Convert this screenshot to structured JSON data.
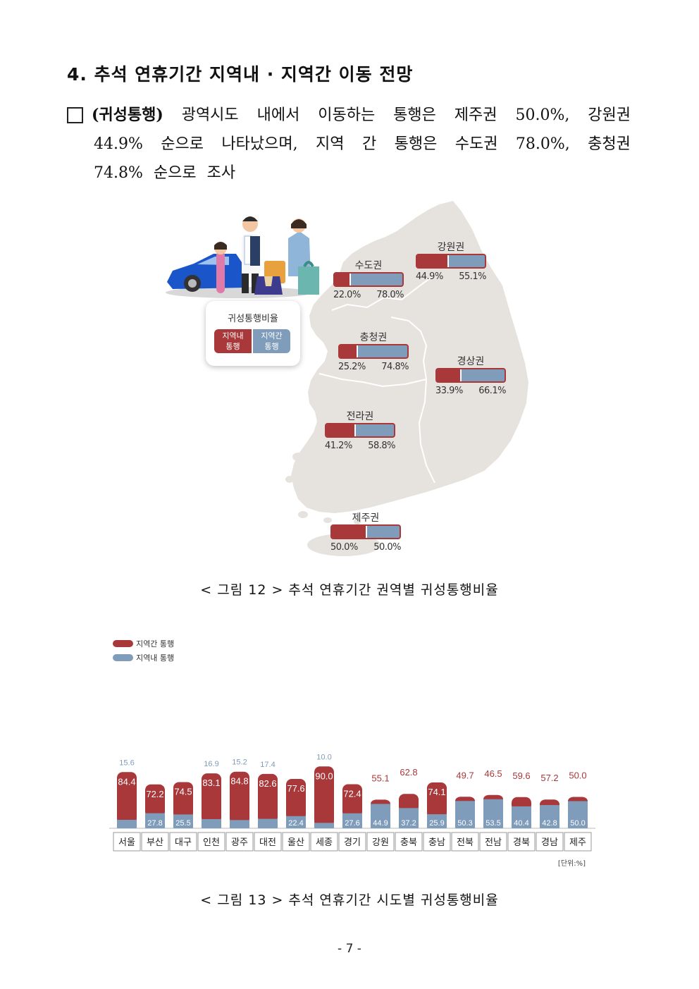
{
  "section": {
    "title": "4. 추석 연휴기간 지역내 · 지역간 이동 전망"
  },
  "paragraph": {
    "line1_words": [
      "(귀성통행)",
      "광역시도",
      "내에서",
      "이동하는",
      "통행은",
      "제주권",
      "50.0%,",
      "강원권"
    ],
    "line2_words": [
      "44.9%",
      "순으로",
      "나타났으며,",
      "지역",
      "간",
      "통행은",
      "수도권",
      "78.0%,",
      "충청권"
    ],
    "line3": "74.8% 순으로 조사"
  },
  "figure12": {
    "legend": {
      "title": "귀성통행비율",
      "within_label": "지역내 통행",
      "between_label": "지역간 통행"
    },
    "colors": {
      "within": "#a8383a",
      "between": "#7f9cbb",
      "map": "#e6e3de"
    },
    "regions": [
      {
        "key": "sudo",
        "name": "수도권",
        "within": 22.0,
        "between": 78.0,
        "within_label": "22.0%",
        "between_label": "78.0%"
      },
      {
        "key": "gangwon",
        "name": "강원권",
        "within": 44.9,
        "between": 55.1,
        "within_label": "44.9%",
        "between_label": "55.1%"
      },
      {
        "key": "chungcheong",
        "name": "충청권",
        "within": 25.2,
        "between": 74.8,
        "within_label": "25.2%",
        "between_label": "74.8%"
      },
      {
        "key": "gyeongsang",
        "name": "경상권",
        "within": 33.9,
        "between": 66.1,
        "within_label": "33.9%",
        "between_label": "66.1%"
      },
      {
        "key": "jeolla",
        "name": "전라권",
        "within": 41.2,
        "between": 58.8,
        "within_label": "41.2%",
        "between_label": "58.8%"
      },
      {
        "key": "jeju",
        "name": "제주권",
        "within": 50.0,
        "between": 50.0,
        "within_label": "50.0%",
        "between_label": "50.0%"
      }
    ],
    "caption": "< 그림 12 > 추석 연휴기간 권역별 귀성통행비율"
  },
  "chart_data": {
    "type": "bar",
    "stacked": true,
    "categories": [
      "서울",
      "부산",
      "대구",
      "인천",
      "광주",
      "대전",
      "울산",
      "세종",
      "경기",
      "강원",
      "충북",
      "충남",
      "전북",
      "전남",
      "경북",
      "경남",
      "제주"
    ],
    "series": [
      {
        "name": "지역간 통행",
        "color": "#a8383a",
        "values": [
          84.4,
          72.2,
          74.5,
          83.1,
          84.8,
          82.6,
          77.6,
          90.0,
          72.4,
          55.1,
          62.8,
          74.1,
          49.7,
          46.5,
          59.6,
          57.2,
          50.0
        ]
      },
      {
        "name": "지역내 통행",
        "color": "#7f9cbb",
        "values": [
          15.6,
          27.8,
          25.5,
          16.9,
          15.2,
          17.4,
          22.4,
          10.0,
          27.6,
          44.9,
          37.2,
          25.9,
          50.3,
          53.5,
          40.4,
          42.8,
          50.0
        ]
      }
    ],
    "unit_note": "[단위:%]"
  },
  "figure13": {
    "caption": "< 그림 13 > 추석 연휴기간 시도별 귀성통행비율"
  },
  "page_number": "- 7 -"
}
